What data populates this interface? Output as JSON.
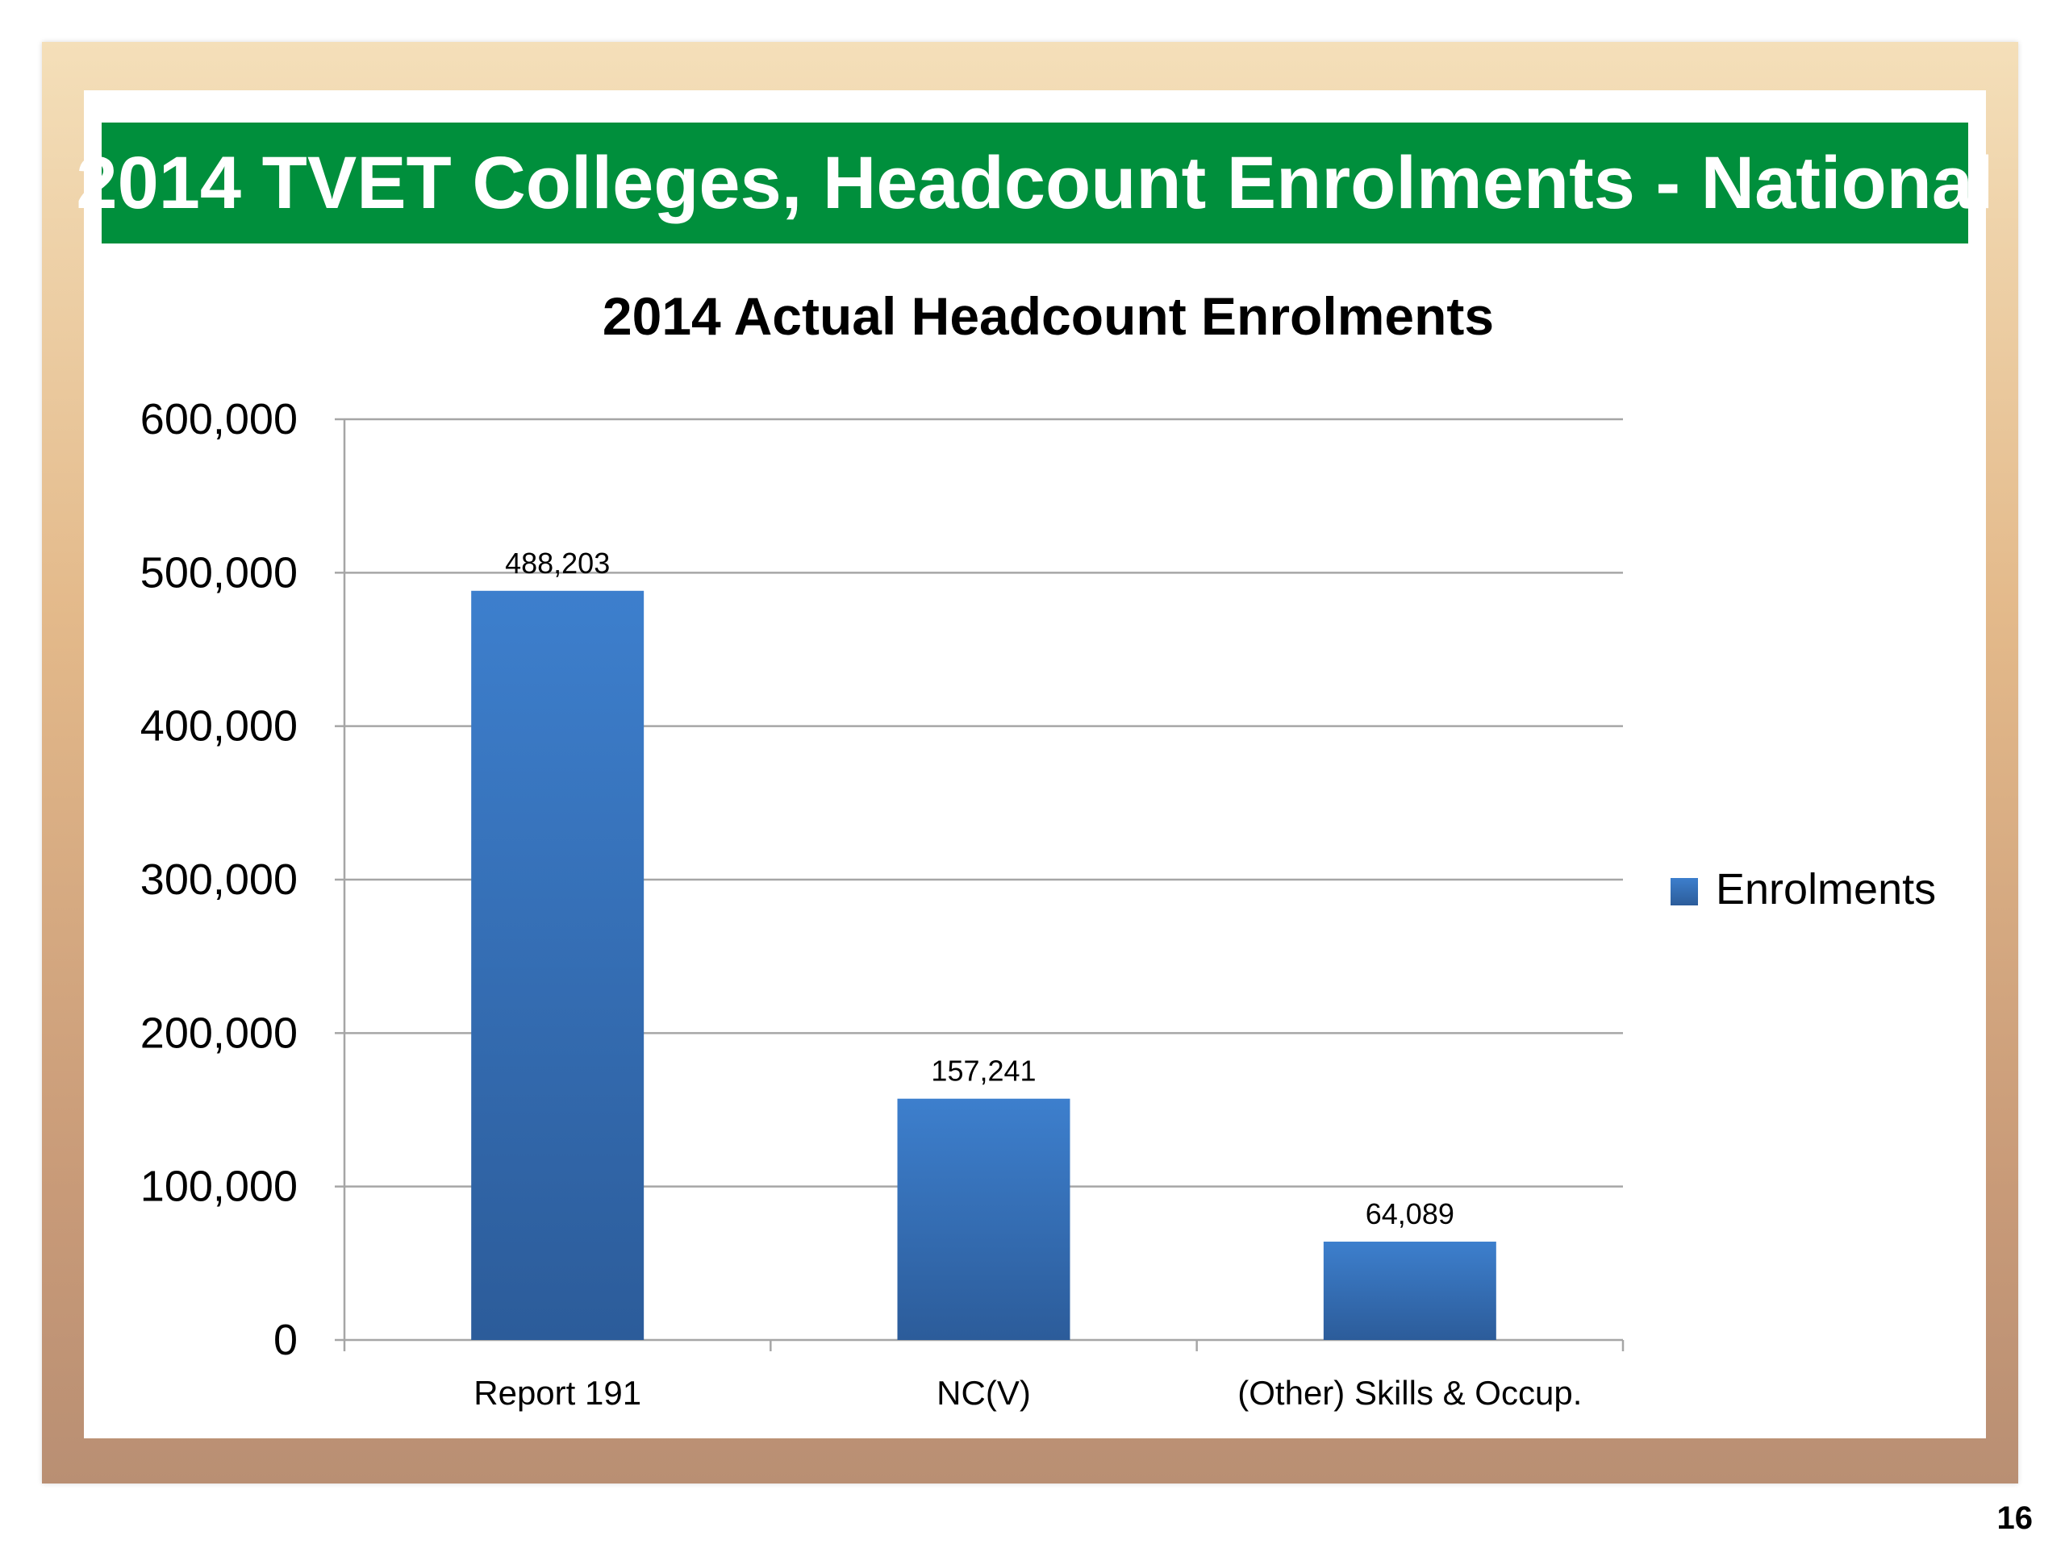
{
  "slide": {
    "title": "2014 TVET Colleges, Headcount Enrolments - National",
    "page_number": "16"
  },
  "colors": {
    "banner": "#008f3c",
    "bar_top": "#3d7fcd",
    "bar_bottom": "#2c5c9a",
    "grid": "#a6a6a6"
  },
  "chart_data": {
    "type": "bar",
    "title": "2014 Actual Headcount Enrolments",
    "xlabel": "",
    "ylabel": "",
    "categories": [
      "Report 191",
      "NC(V)",
      "(Other) Skills & Occup."
    ],
    "series": [
      {
        "name": "Enrolments",
        "values": [
          488203,
          157241,
          64089
        ],
        "data_labels": [
          "488,203",
          "157,241",
          "64,089"
        ]
      }
    ],
    "ylim": [
      0,
      600000
    ],
    "y_ticks": [
      0,
      100000,
      200000,
      300000,
      400000,
      500000,
      600000
    ],
    "y_tick_labels": [
      "0",
      "100,000",
      "200,000",
      "300,000",
      "400,000",
      "500,000",
      "600,000"
    ],
    "grid": true,
    "legend": "right"
  }
}
